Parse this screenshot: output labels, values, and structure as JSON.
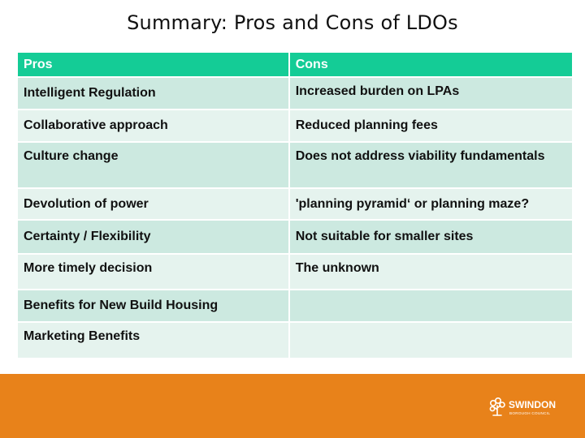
{
  "title": "Summary: Pros and Cons of LDOs",
  "table": {
    "headers": {
      "pros": "Pros",
      "cons": "Cons"
    },
    "rows": [
      {
        "pros": "Intelligent Regulation",
        "cons": "Increased burden on LPAs"
      },
      {
        "pros": "Collaborative approach",
        "cons": "Reduced planning fees"
      },
      {
        "pros": "Culture change",
        "cons": "Does not address viability fundamentals"
      },
      {
        "pros": "Devolution of power",
        "cons": "'planning pyramid‘ or planning maze?"
      },
      {
        "pros": "Certainty / Flexibility",
        "cons": "Not suitable for smaller sites"
      },
      {
        "pros": "More timely decision",
        "cons": "The unknown"
      },
      {
        "pros": "Benefits for New Build Housing",
        "cons": ""
      },
      {
        "pros": "Marketing Benefits",
        "cons": ""
      }
    ]
  },
  "footer": {
    "logo_name": "SWINDON",
    "logo_sub": "BOROUGH COUNCIL",
    "color": "#e8821a"
  },
  "colors": {
    "header": "#14cc96",
    "row_dark": "#cce9e0",
    "row_light": "#e5f3ee"
  }
}
